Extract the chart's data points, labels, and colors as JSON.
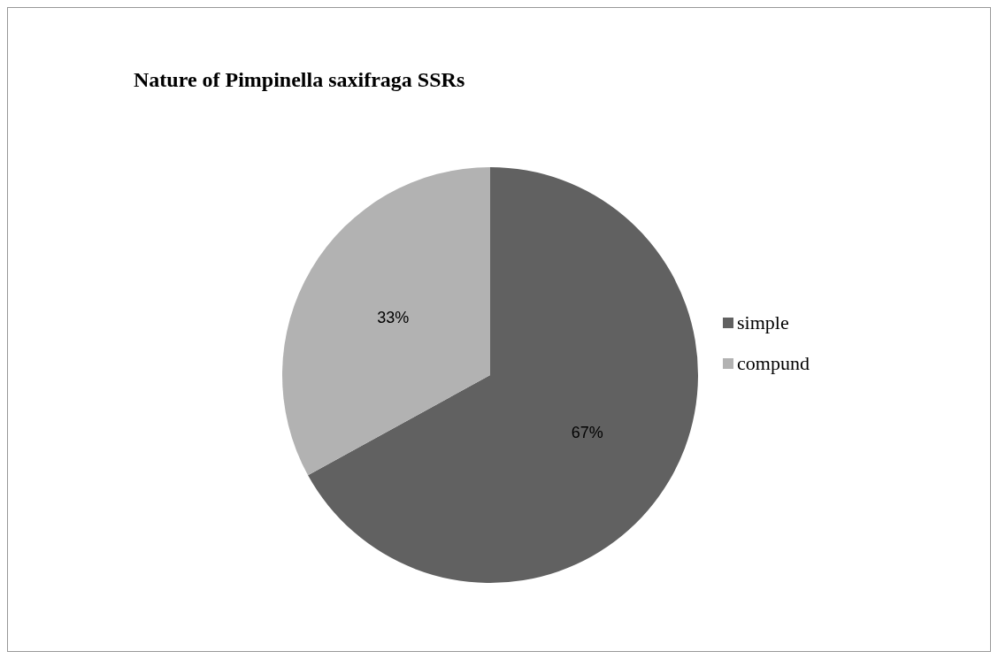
{
  "chart_data": {
    "type": "pie",
    "title": "Nature of Pimpinella saxifraga SSRs",
    "categories": [
      "simple",
      "compund"
    ],
    "values": [
      67,
      33
    ],
    "colors": [
      "#616161",
      "#b2b2b2"
    ],
    "value_labels": [
      "67%",
      "33%"
    ],
    "legend": "right"
  }
}
